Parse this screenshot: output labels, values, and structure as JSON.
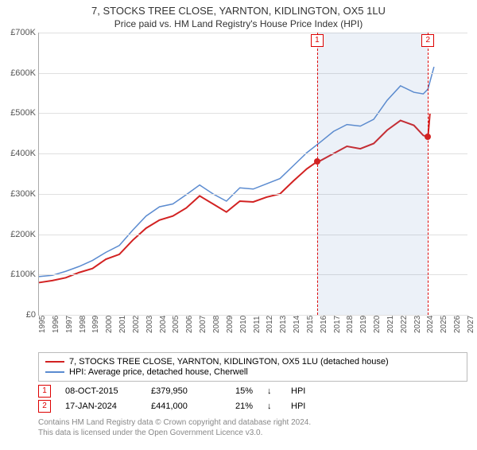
{
  "title": "7, STOCKS TREE CLOSE, YARNTON, KIDLINGTON, OX5 1LU",
  "subtitle": "Price paid vs. HM Land Registry's House Price Index (HPI)",
  "chart": {
    "type": "line",
    "ylim": [
      0,
      700000
    ],
    "ytick_step": 100000,
    "y_ticks": [
      "£0",
      "£100K",
      "£200K",
      "£300K",
      "£400K",
      "£500K",
      "£600K",
      "£700K"
    ],
    "xlim": [
      1995,
      2027
    ],
    "x_ticks": [
      1995,
      1996,
      1997,
      1998,
      1999,
      2000,
      2001,
      2002,
      2003,
      2004,
      2005,
      2006,
      2007,
      2008,
      2009,
      2010,
      2011,
      2012,
      2013,
      2014,
      2015,
      2016,
      2017,
      2018,
      2019,
      2020,
      2021,
      2022,
      2023,
      2024,
      2025,
      2026,
      2027
    ],
    "background_color": "#ffffff",
    "grid_color": "#e0e0e0",
    "shade_color": "rgba(100,140,200,0.12)",
    "shade_from": 2015.77,
    "shade_to": 2024.05,
    "series": [
      {
        "name": "property",
        "color": "#d22222",
        "width": 2,
        "points": [
          [
            1995,
            80000
          ],
          [
            1996,
            85000
          ],
          [
            1997,
            92000
          ],
          [
            1998,
            105000
          ],
          [
            1999,
            115000
          ],
          [
            2000,
            138000
          ],
          [
            2001,
            150000
          ],
          [
            2002,
            185000
          ],
          [
            2003,
            215000
          ],
          [
            2004,
            235000
          ],
          [
            2005,
            245000
          ],
          [
            2006,
            265000
          ],
          [
            2007,
            295000
          ],
          [
            2008,
            275000
          ],
          [
            2009,
            255000
          ],
          [
            2010,
            282000
          ],
          [
            2011,
            280000
          ],
          [
            2012,
            292000
          ],
          [
            2013,
            300000
          ],
          [
            2014,
            332000
          ],
          [
            2015,
            362000
          ],
          [
            2015.77,
            379950
          ],
          [
            2016,
            382000
          ],
          [
            2017,
            400000
          ],
          [
            2018,
            418000
          ],
          [
            2019,
            412000
          ],
          [
            2020,
            425000
          ],
          [
            2021,
            458000
          ],
          [
            2022,
            482000
          ],
          [
            2023,
            470000
          ],
          [
            2023.7,
            445000
          ],
          [
            2024.05,
            441000
          ],
          [
            2024.2,
            500000
          ]
        ]
      },
      {
        "name": "hpi",
        "color": "#5b8bd0",
        "width": 1.5,
        "points": [
          [
            1995,
            95000
          ],
          [
            1996,
            98000
          ],
          [
            1997,
            108000
          ],
          [
            1998,
            120000
          ],
          [
            1999,
            135000
          ],
          [
            2000,
            155000
          ],
          [
            2001,
            172000
          ],
          [
            2002,
            210000
          ],
          [
            2003,
            245000
          ],
          [
            2004,
            268000
          ],
          [
            2005,
            275000
          ],
          [
            2006,
            298000
          ],
          [
            2007,
            322000
          ],
          [
            2008,
            300000
          ],
          [
            2009,
            282000
          ],
          [
            2010,
            315000
          ],
          [
            2011,
            312000
          ],
          [
            2012,
            325000
          ],
          [
            2013,
            338000
          ],
          [
            2014,
            370000
          ],
          [
            2015,
            402000
          ],
          [
            2016,
            428000
          ],
          [
            2017,
            455000
          ],
          [
            2018,
            472000
          ],
          [
            2019,
            468000
          ],
          [
            2020,
            485000
          ],
          [
            2021,
            532000
          ],
          [
            2022,
            568000
          ],
          [
            2023,
            552000
          ],
          [
            2023.7,
            548000
          ],
          [
            2024.05,
            560000
          ],
          [
            2024.5,
            615000
          ]
        ]
      }
    ],
    "markers": [
      {
        "n": "1",
        "x": 2015.77,
        "y": 379950,
        "dot_color": "#d22222"
      },
      {
        "n": "2",
        "x": 2024.05,
        "y": 441000,
        "dot_color": "#d22222"
      }
    ]
  },
  "legend": {
    "items": [
      {
        "color": "#d22222",
        "label": "7, STOCKS TREE CLOSE, YARNTON, KIDLINGTON, OX5 1LU (detached house)"
      },
      {
        "color": "#5b8bd0",
        "label": "HPI: Average price, detached house, Cherwell"
      }
    ]
  },
  "transactions": [
    {
      "n": "1",
      "date": "08-OCT-2015",
      "price": "£379,950",
      "pct": "15%",
      "arrow": "↓",
      "ref": "HPI"
    },
    {
      "n": "2",
      "date": "17-JAN-2024",
      "price": "£441,000",
      "pct": "21%",
      "arrow": "↓",
      "ref": "HPI"
    }
  ],
  "footer": {
    "line1": "Contains HM Land Registry data © Crown copyright and database right 2024.",
    "line2": "This data is licensed under the Open Government Licence v3.0."
  }
}
